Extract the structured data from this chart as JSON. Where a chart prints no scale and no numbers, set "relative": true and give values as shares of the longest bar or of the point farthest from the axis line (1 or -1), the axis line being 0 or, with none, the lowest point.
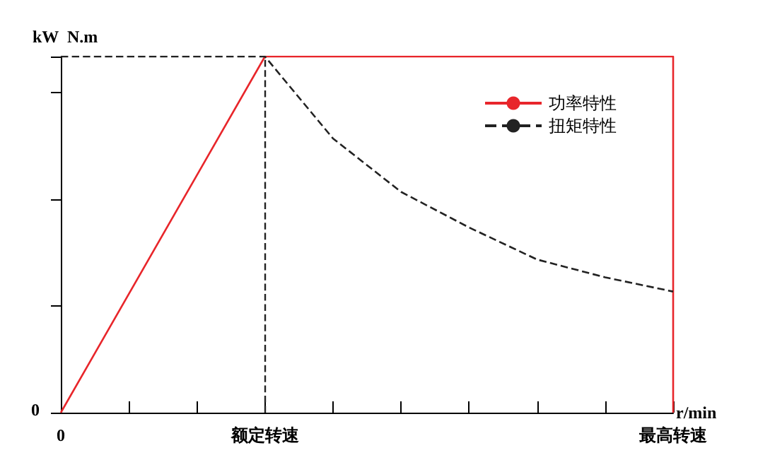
{
  "chart_data": {
    "type": "line",
    "relative": true,
    "ylabel": "kW  N.m",
    "xlabel": "r/min",
    "categories": [
      "0",
      null,
      null,
      "额定转速",
      null,
      null,
      null,
      null,
      null,
      "最高转速"
    ],
    "series": [
      {
        "name": "功率特性",
        "color": "#e8262b",
        "line_style": "solid",
        "x": [
          "0",
          "额定转速",
          "最高转速",
          "最高转速"
        ],
        "values": [
          0,
          1,
          1,
          0
        ]
      },
      {
        "name": "扭矩特性",
        "color": "#222222",
        "line_style": "dashed",
        "values": [
          1,
          1,
          1,
          1,
          0.77,
          0.62,
          0.52,
          0.43,
          0.38,
          0.34
        ]
      }
    ],
    "ref_lines": [
      {
        "axis": "x",
        "value": "额定转速",
        "color": "#222222",
        "line_style": "dashed"
      }
    ],
    "annotations": [
      "0"
    ],
    "legend": "top right",
    "grid": false,
    "marker": "none"
  }
}
